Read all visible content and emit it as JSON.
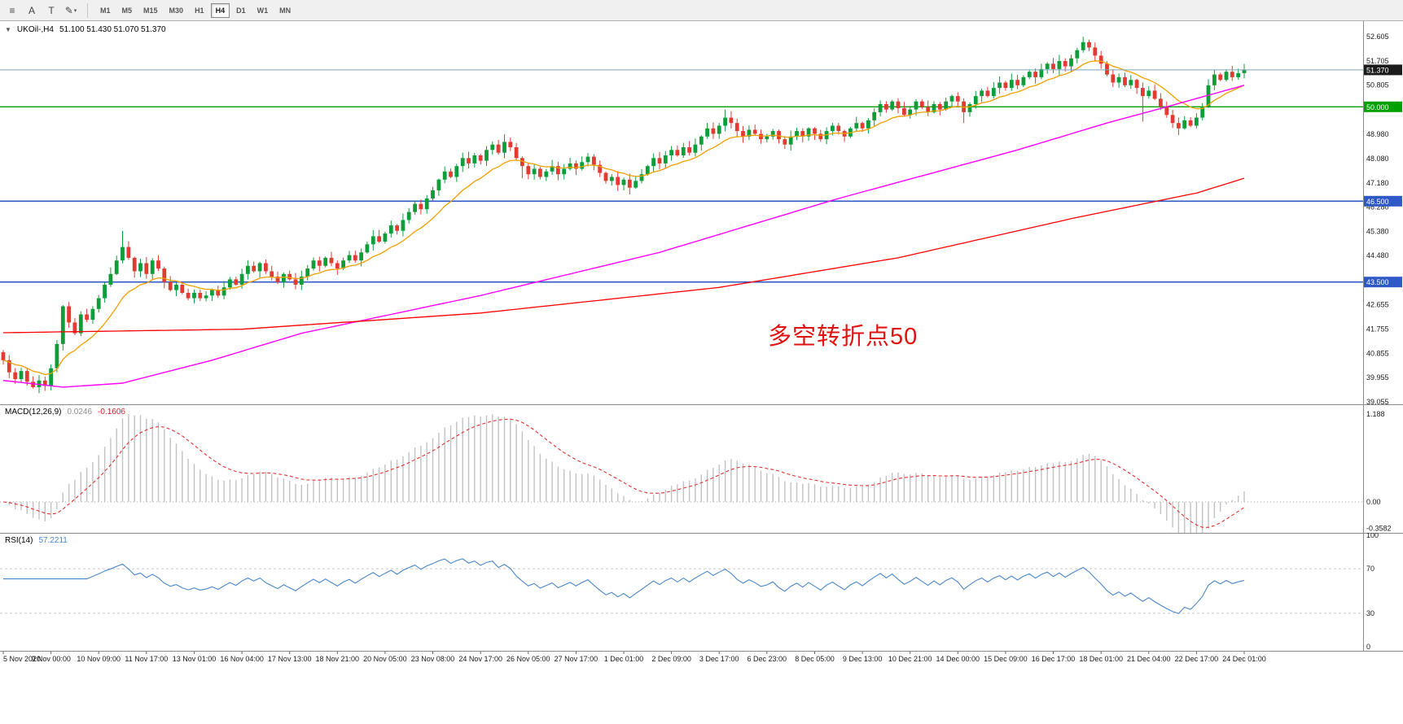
{
  "toolbar": {
    "icons": [
      {
        "name": "charts-list-icon",
        "glyph": "≡"
      },
      {
        "name": "cursor-tool-icon",
        "glyph": "A"
      },
      {
        "name": "text-tool-icon",
        "glyph": "T"
      },
      {
        "name": "draw-tools-icon",
        "glyph": "✎"
      }
    ],
    "dropdown_glyph": "▾",
    "timeframes": [
      {
        "label": "M1"
      },
      {
        "label": "M5"
      },
      {
        "label": "M15"
      },
      {
        "label": "M30"
      },
      {
        "label": "H1"
      },
      {
        "label": "H4"
      },
      {
        "label": "D1"
      },
      {
        "label": "W1"
      },
      {
        "label": "MN"
      }
    ],
    "active_timeframe": "H4"
  },
  "chart": {
    "collapse_glyph": "▼",
    "title": "UKOil-,H4",
    "ohlc": "51.100 51.430 51.070 51.370",
    "annotation": "多空转折点50",
    "annotation_color": "#e01313",
    "axis_labels": [
      52.605,
      51.705,
      50.805,
      48.98,
      48.08,
      47.18,
      46.28,
      45.38,
      44.48,
      42.655,
      41.755,
      40.855,
      39.955,
      39.055
    ],
    "levels": [
      {
        "name": "current-price-line",
        "price": 51.37,
        "color": "#7aa3b8",
        "w": 1
      },
      {
        "name": "hline-50000",
        "price": 50.0,
        "color": "#00a000",
        "w": 1.4
      },
      {
        "name": "hline-46500",
        "price": 46.5,
        "color": "#2e59c7",
        "w": 1.6
      },
      {
        "name": "hline-43500",
        "price": 43.5,
        "color": "#2e59c7",
        "w": 1.6
      }
    ],
    "badges": [
      {
        "text": "51.370",
        "price": 51.37,
        "bg": "#1b1b1b"
      },
      {
        "text": "50.000",
        "price": 50.0,
        "bg": "#00a000"
      },
      {
        "text": "46.500",
        "price": 46.5,
        "bg": "#2e59c7"
      },
      {
        "text": "43.500",
        "price": 43.5,
        "bg": "#2e59c7"
      }
    ]
  },
  "chart_data": {
    "type": "candlestick",
    "symbol": "UKOil-",
    "timeframe": "H4",
    "current_bar": {
      "open": 51.1,
      "high": 51.43,
      "low": 51.07,
      "close": 51.37
    },
    "price_range": [
      39.055,
      52.605
    ],
    "first_open": 40.9,
    "colors": {
      "up": "#0f9d3a",
      "down": "#e23b32"
    },
    "closes": [
      40.6,
      40.15,
      39.9,
      40.2,
      39.8,
      39.6,
      39.85,
      39.65,
      40.3,
      41.2,
      42.6,
      42.0,
      41.6,
      42.3,
      42.1,
      42.5,
      42.9,
      43.4,
      43.8,
      44.3,
      44.8,
      44.4,
      43.9,
      44.2,
      43.8,
      44.3,
      44.0,
      43.5,
      43.2,
      43.4,
      43.1,
      42.9,
      43.1,
      42.9,
      43.0,
      43.2,
      43.0,
      43.3,
      43.6,
      43.4,
      43.8,
      44.1,
      43.9,
      44.2,
      43.9,
      43.7,
      43.5,
      43.8,
      43.6,
      43.4,
      43.7,
      44.0,
      44.3,
      44.1,
      44.4,
      44.2,
      44.0,
      44.3,
      44.5,
      44.3,
      44.6,
      44.9,
      45.2,
      45.0,
      45.3,
      45.6,
      45.4,
      45.8,
      46.1,
      46.4,
      46.2,
      46.6,
      46.9,
      47.3,
      47.6,
      47.4,
      47.8,
      48.1,
      47.9,
      48.2,
      48.0,
      48.4,
      48.6,
      48.3,
      48.7,
      48.5,
      48.1,
      47.8,
      47.5,
      47.7,
      47.4,
      47.6,
      47.8,
      47.5,
      47.7,
      47.9,
      47.7,
      47.95,
      48.15,
      47.85,
      47.55,
      47.25,
      47.4,
      47.1,
      47.3,
      47.0,
      47.25,
      47.5,
      47.8,
      48.1,
      47.9,
      48.2,
      48.4,
      48.2,
      48.5,
      48.3,
      48.6,
      48.9,
      49.2,
      49.0,
      49.3,
      49.6,
      49.4,
      49.1,
      48.9,
      49.15,
      49.0,
      48.8,
      48.9,
      49.1,
      48.8,
      48.6,
      48.9,
      49.1,
      48.9,
      49.2,
      49.0,
      48.8,
      49.1,
      49.3,
      49.1,
      48.9,
      49.2,
      49.4,
      49.2,
      49.5,
      49.8,
      50.1,
      49.9,
      50.2,
      49.95,
      49.7,
      49.9,
      50.2,
      50.0,
      49.8,
      50.1,
      49.9,
      50.2,
      50.4,
      50.2,
      49.8,
      50.1,
      50.4,
      50.6,
      50.4,
      50.7,
      50.9,
      50.7,
      51.0,
      50.8,
      51.1,
      51.3,
      51.1,
      51.4,
      51.6,
      51.4,
      51.7,
      51.5,
      51.8,
      52.1,
      52.4,
      52.2,
      51.9,
      51.6,
      51.2,
      50.9,
      51.1,
      50.8,
      51.0,
      50.7,
      50.4,
      50.6,
      50.3,
      50.0,
      49.7,
      49.4,
      49.2,
      49.5,
      49.3,
      49.6,
      50.0,
      50.8,
      51.2,
      51.0,
      51.3,
      51.1,
      51.25,
      51.37
    ],
    "wick_overrides": {
      "20": {
        "h": 45.4
      },
      "84": {
        "h": 48.98
      },
      "87": {
        "l": 47.35
      },
      "105": {
        "l": 46.75
      },
      "121": {
        "h": 49.9
      },
      "161": {
        "l": 49.4
      },
      "181": {
        "h": 52.6
      },
      "191": {
        "l": 49.45
      },
      "197": {
        "l": 48.95
      }
    },
    "moving_averages": {
      "fast_orange": {
        "period": 12,
        "color": "#f0a000"
      },
      "mid_magenta": {
        "color": "#ff00ff",
        "waypoints": [
          [
            0,
            39.85
          ],
          [
            10,
            39.6
          ],
          [
            20,
            39.75
          ],
          [
            35,
            40.6
          ],
          [
            50,
            41.6
          ],
          [
            65,
            42.3
          ],
          [
            80,
            43.0
          ],
          [
            95,
            43.8
          ],
          [
            110,
            44.6
          ],
          [
            125,
            45.6
          ],
          [
            140,
            46.6
          ],
          [
            155,
            47.5
          ],
          [
            170,
            48.4
          ],
          [
            185,
            49.4
          ],
          [
            195,
            50.0
          ],
          [
            208,
            50.8
          ]
        ]
      },
      "slow_red": {
        "color": "#ff0000",
        "waypoints": [
          [
            0,
            41.62
          ],
          [
            40,
            41.75
          ],
          [
            80,
            42.35
          ],
          [
            120,
            43.3
          ],
          [
            150,
            44.4
          ],
          [
            180,
            45.9
          ],
          [
            200,
            46.8
          ],
          [
            208,
            47.35
          ]
        ]
      }
    },
    "label_step": 8,
    "time_labels": [
      "5 Nov 2020",
      "9 Nov 00:00",
      "10 Nov 09:00",
      "11 Nov 17:00",
      "13 Nov 01:00",
      "16 Nov 04:00",
      "17 Nov 13:00",
      "18 Nov 21:00",
      "20 Nov 05:00",
      "23 Nov 08:00",
      "24 Nov 17:00",
      "26 Nov 05:00",
      "27 Nov 17:00",
      "1 Dec 01:00",
      "2 Dec 09:00",
      "3 Dec 17:00",
      "6 Dec 23:00",
      "8 Dec 05:00",
      "9 Dec 13:00",
      "10 Dec 21:00",
      "14 Dec 00:00",
      "15 Dec 09:00",
      "16 Dec 17:00",
      "18 Dec 01:00",
      "21 Dec 04:00",
      "22 Dec 17:00",
      "24 Dec 01:00"
    ],
    "indicators": {
      "macd": {
        "name": "MACD(12,26,9)",
        "main_text": "0.0246",
        "signal_text": "-0.1606",
        "fast": 12,
        "slow": 26,
        "signal": 9,
        "axis": [
          {
            "t": "1.188",
            "v": 1.188
          },
          {
            "t": "0.00",
            "v": 0
          },
          {
            "t": "-0.3582",
            "v": -0.3582
          }
        ]
      },
      "rsi": {
        "name": "RSI(14)",
        "value_text": "57.2211",
        "period": 14,
        "levels": [
          70,
          30
        ],
        "axis": [
          {
            "t": "100",
            "v": 100
          },
          {
            "t": "70",
            "v": 70
          },
          {
            "t": "30",
            "v": 30
          },
          {
            "t": "0",
            "v": 0
          }
        ]
      }
    }
  }
}
